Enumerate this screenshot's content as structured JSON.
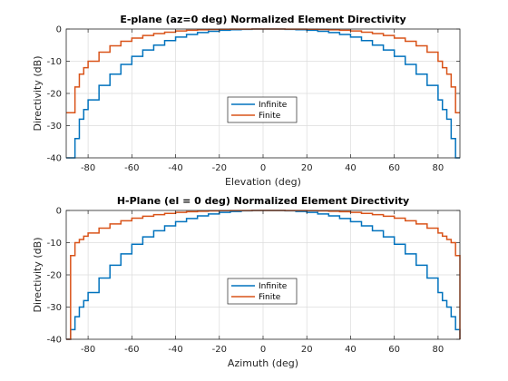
{
  "chart_data": [
    {
      "type": "line",
      "title": "E-plane (az=0 deg) Normalized Element Directivity",
      "xlabel": "Elevation (deg)",
      "ylabel": "Directivity (dB)",
      "xlim": [
        -90,
        90
      ],
      "ylim": [
        -40,
        0
      ],
      "xticks": [
        -80,
        -60,
        -40,
        -20,
        0,
        20,
        40,
        60,
        80
      ],
      "yticks": [
        0,
        -10,
        -20,
        -30,
        -40
      ],
      "grid": true,
      "legend_position": "center",
      "step": true,
      "x": [
        -90,
        -88,
        -86,
        -84,
        -82,
        -80,
        -75,
        -70,
        -65,
        -60,
        -55,
        -50,
        -45,
        -40,
        -35,
        -30,
        -25,
        -20,
        -15,
        -10,
        -5,
        0,
        5,
        10,
        15,
        20,
        25,
        30,
        35,
        40,
        45,
        50,
        55,
        60,
        65,
        70,
        75,
        80,
        82,
        84,
        86,
        88,
        90
      ],
      "series": [
        {
          "name": "Infinite",
          "color": "#0072BD",
          "values": [
            -40,
            -40,
            -34,
            -28,
            -25,
            -22,
            -17.5,
            -14,
            -11,
            -8.5,
            -6.5,
            -5,
            -3.6,
            -2.5,
            -1.7,
            -1.1,
            -0.7,
            -0.4,
            -0.2,
            -0.1,
            0,
            0,
            0,
            -0.1,
            -0.2,
            -0.4,
            -0.7,
            -1.1,
            -1.7,
            -2.5,
            -3.6,
            -5,
            -6.5,
            -8.5,
            -11,
            -14,
            -17.5,
            -22,
            -25,
            -28,
            -34,
            -40,
            -40
          ]
        },
        {
          "name": "Finite",
          "color": "#D95319",
          "values": [
            -26,
            -26,
            -18,
            -14,
            -12,
            -10,
            -7.2,
            -5.2,
            -3.8,
            -2.8,
            -2,
            -1.4,
            -1,
            -0.6,
            -0.4,
            -0.25,
            -0.15,
            -0.08,
            -0.04,
            -0.02,
            0,
            0,
            0,
            -0.02,
            -0.04,
            -0.08,
            -0.15,
            -0.25,
            -0.4,
            -0.6,
            -1,
            -1.4,
            -2,
            -2.8,
            -3.8,
            -5.2,
            -7.2,
            -10,
            -12,
            -14,
            -18,
            -26,
            -26
          ]
        }
      ]
    },
    {
      "type": "line",
      "title": "H-Plane (el = 0 deg) Normalized Element Directivity",
      "xlabel": "Azimuth (deg)",
      "ylabel": "Directivity (dB)",
      "xlim": [
        -90,
        90
      ],
      "ylim": [
        -40,
        0
      ],
      "xticks": [
        -80,
        -60,
        -40,
        -20,
        0,
        20,
        40,
        60,
        80
      ],
      "yticks": [
        0,
        -10,
        -20,
        -30,
        -40
      ],
      "grid": true,
      "legend_position": "center",
      "step": true,
      "x": [
        -90,
        -88,
        -86,
        -84,
        -82,
        -80,
        -75,
        -70,
        -65,
        -60,
        -55,
        -50,
        -45,
        -40,
        -35,
        -30,
        -25,
        -20,
        -15,
        -10,
        -5,
        0,
        5,
        10,
        15,
        20,
        25,
        30,
        35,
        40,
        45,
        50,
        55,
        60,
        65,
        70,
        75,
        80,
        82,
        84,
        86,
        88,
        90
      ],
      "series": [
        {
          "name": "Infinite",
          "color": "#0072BD",
          "values": [
            -40,
            -37,
            -33,
            -30,
            -28,
            -25.5,
            -21,
            -17,
            -13.5,
            -10.5,
            -8.2,
            -6.3,
            -4.8,
            -3.5,
            -2.5,
            -1.7,
            -1.1,
            -0.6,
            -0.3,
            -0.1,
            0,
            0,
            0,
            -0.1,
            -0.3,
            -0.6,
            -1.1,
            -1.7,
            -2.5,
            -3.5,
            -4.8,
            -6.3,
            -8.2,
            -10.5,
            -13.5,
            -17,
            -21,
            -25.5,
            -28,
            -30,
            -33,
            -37,
            -40
          ]
        },
        {
          "name": "Finite",
          "color": "#D95319",
          "values": [
            -40,
            -14,
            -10,
            -9,
            -8,
            -7,
            -5.5,
            -4.2,
            -3.2,
            -2.4,
            -1.8,
            -1.3,
            -0.9,
            -0.6,
            -0.4,
            -0.25,
            -0.15,
            -0.08,
            -0.04,
            -0.02,
            0,
            0,
            0,
            -0.02,
            -0.04,
            -0.08,
            -0.15,
            -0.25,
            -0.4,
            -0.6,
            -0.9,
            -1.3,
            -1.8,
            -2.4,
            -3.2,
            -4.2,
            -5.5,
            -7,
            -8,
            -9,
            -10,
            -14,
            -40
          ]
        }
      ]
    }
  ]
}
